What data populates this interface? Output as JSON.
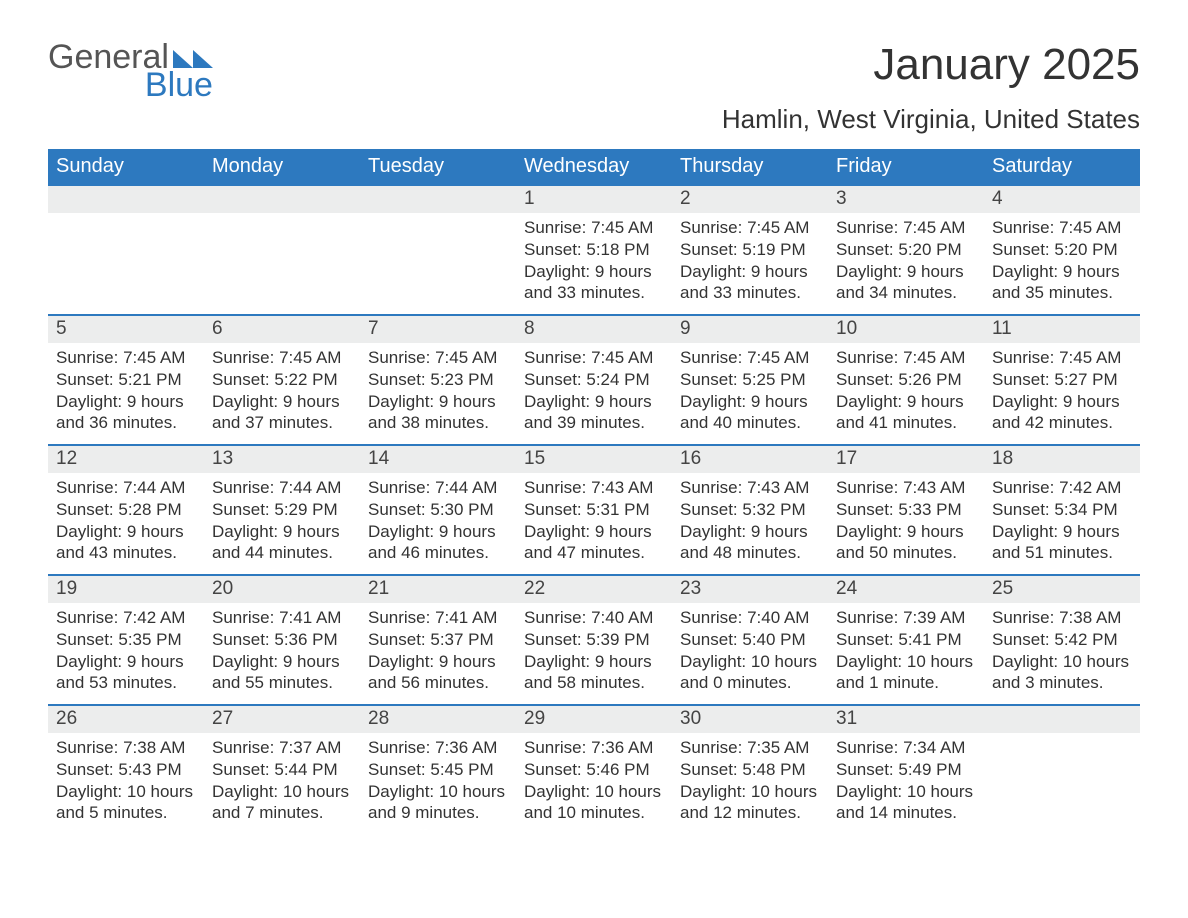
{
  "logo": {
    "text1": "General",
    "text2": "Blue",
    "accent_color": "#2d79bf"
  },
  "title": "January 2025",
  "location": "Hamlin, West Virginia, United States",
  "colors": {
    "header_bg": "#2d79bf",
    "header_text": "#ffffff",
    "daynum_bg": "#eceded",
    "week_border": "#2d79bf",
    "body_text": "#333333",
    "page_bg": "#ffffff"
  },
  "fonts": {
    "title_size_pt": 33,
    "location_size_pt": 20,
    "header_size_pt": 15,
    "daynum_size_pt": 14,
    "body_size_pt": 13,
    "family": "Arial"
  },
  "day_headers": [
    "Sunday",
    "Monday",
    "Tuesday",
    "Wednesday",
    "Thursday",
    "Friday",
    "Saturday"
  ],
  "weeks": [
    [
      null,
      null,
      null,
      {
        "n": "1",
        "sunrise": "7:45 AM",
        "sunset": "5:18 PM",
        "daylight": "9 hours and 33 minutes."
      },
      {
        "n": "2",
        "sunrise": "7:45 AM",
        "sunset": "5:19 PM",
        "daylight": "9 hours and 33 minutes."
      },
      {
        "n": "3",
        "sunrise": "7:45 AM",
        "sunset": "5:20 PM",
        "daylight": "9 hours and 34 minutes."
      },
      {
        "n": "4",
        "sunrise": "7:45 AM",
        "sunset": "5:20 PM",
        "daylight": "9 hours and 35 minutes."
      }
    ],
    [
      {
        "n": "5",
        "sunrise": "7:45 AM",
        "sunset": "5:21 PM",
        "daylight": "9 hours and 36 minutes."
      },
      {
        "n": "6",
        "sunrise": "7:45 AM",
        "sunset": "5:22 PM",
        "daylight": "9 hours and 37 minutes."
      },
      {
        "n": "7",
        "sunrise": "7:45 AM",
        "sunset": "5:23 PM",
        "daylight": "9 hours and 38 minutes."
      },
      {
        "n": "8",
        "sunrise": "7:45 AM",
        "sunset": "5:24 PM",
        "daylight": "9 hours and 39 minutes."
      },
      {
        "n": "9",
        "sunrise": "7:45 AM",
        "sunset": "5:25 PM",
        "daylight": "9 hours and 40 minutes."
      },
      {
        "n": "10",
        "sunrise": "7:45 AM",
        "sunset": "5:26 PM",
        "daylight": "9 hours and 41 minutes."
      },
      {
        "n": "11",
        "sunrise": "7:45 AM",
        "sunset": "5:27 PM",
        "daylight": "9 hours and 42 minutes."
      }
    ],
    [
      {
        "n": "12",
        "sunrise": "7:44 AM",
        "sunset": "5:28 PM",
        "daylight": "9 hours and 43 minutes."
      },
      {
        "n": "13",
        "sunrise": "7:44 AM",
        "sunset": "5:29 PM",
        "daylight": "9 hours and 44 minutes."
      },
      {
        "n": "14",
        "sunrise": "7:44 AM",
        "sunset": "5:30 PM",
        "daylight": "9 hours and 46 minutes."
      },
      {
        "n": "15",
        "sunrise": "7:43 AM",
        "sunset": "5:31 PM",
        "daylight": "9 hours and 47 minutes."
      },
      {
        "n": "16",
        "sunrise": "7:43 AM",
        "sunset": "5:32 PM",
        "daylight": "9 hours and 48 minutes."
      },
      {
        "n": "17",
        "sunrise": "7:43 AM",
        "sunset": "5:33 PM",
        "daylight": "9 hours and 50 minutes."
      },
      {
        "n": "18",
        "sunrise": "7:42 AM",
        "sunset": "5:34 PM",
        "daylight": "9 hours and 51 minutes."
      }
    ],
    [
      {
        "n": "19",
        "sunrise": "7:42 AM",
        "sunset": "5:35 PM",
        "daylight": "9 hours and 53 minutes."
      },
      {
        "n": "20",
        "sunrise": "7:41 AM",
        "sunset": "5:36 PM",
        "daylight": "9 hours and 55 minutes."
      },
      {
        "n": "21",
        "sunrise": "7:41 AM",
        "sunset": "5:37 PM",
        "daylight": "9 hours and 56 minutes."
      },
      {
        "n": "22",
        "sunrise": "7:40 AM",
        "sunset": "5:39 PM",
        "daylight": "9 hours and 58 minutes."
      },
      {
        "n": "23",
        "sunrise": "7:40 AM",
        "sunset": "5:40 PM",
        "daylight": "10 hours and 0 minutes."
      },
      {
        "n": "24",
        "sunrise": "7:39 AM",
        "sunset": "5:41 PM",
        "daylight": "10 hours and 1 minute."
      },
      {
        "n": "25",
        "sunrise": "7:38 AM",
        "sunset": "5:42 PM",
        "daylight": "10 hours and 3 minutes."
      }
    ],
    [
      {
        "n": "26",
        "sunrise": "7:38 AM",
        "sunset": "5:43 PM",
        "daylight": "10 hours and 5 minutes."
      },
      {
        "n": "27",
        "sunrise": "7:37 AM",
        "sunset": "5:44 PM",
        "daylight": "10 hours and 7 minutes."
      },
      {
        "n": "28",
        "sunrise": "7:36 AM",
        "sunset": "5:45 PM",
        "daylight": "10 hours and 9 minutes."
      },
      {
        "n": "29",
        "sunrise": "7:36 AM",
        "sunset": "5:46 PM",
        "daylight": "10 hours and 10 minutes."
      },
      {
        "n": "30",
        "sunrise": "7:35 AM",
        "sunset": "5:48 PM",
        "daylight": "10 hours and 12 minutes."
      },
      {
        "n": "31",
        "sunrise": "7:34 AM",
        "sunset": "5:49 PM",
        "daylight": "10 hours and 14 minutes."
      },
      null
    ]
  ],
  "labels": {
    "sunrise": "Sunrise: ",
    "sunset": "Sunset: ",
    "daylight": "Daylight: "
  }
}
